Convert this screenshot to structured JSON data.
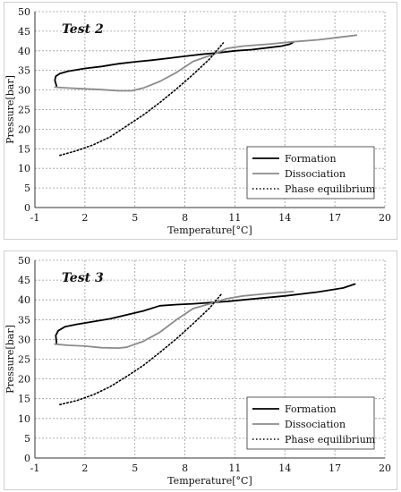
{
  "chart_data": [
    {
      "type": "line",
      "title": "Test 2",
      "xlabel": "Temperature[°C]",
      "ylabel": "Pressure[bar]",
      "xlim": [
        -1,
        20
      ],
      "ylim": [
        0,
        50
      ],
      "xticks": [
        -1,
        2,
        5,
        8,
        11,
        14,
        17,
        20
      ],
      "yticks": [
        0,
        5,
        10,
        15,
        20,
        25,
        30,
        35,
        40,
        45,
        50
      ],
      "grid": true,
      "legend": "bottom-right",
      "series": [
        {
          "name": "Formation",
          "style": "solid",
          "color": "#000000",
          "x": [
            0.3,
            0.2,
            0.25,
            0.5,
            1,
            2,
            3,
            4,
            5,
            6,
            7,
            8,
            9,
            10,
            11,
            12,
            13,
            13.8,
            14.3,
            14.5
          ],
          "y": [
            31.0,
            32.5,
            33.5,
            34.2,
            34.8,
            35.5,
            36.0,
            36.7,
            37.2,
            37.6,
            38.1,
            38.6,
            39.1,
            39.5,
            40.0,
            40.3,
            40.8,
            41.2,
            41.7,
            42.2
          ]
        },
        {
          "name": "Dissociation",
          "style": "solid",
          "color": "#8c8c8c",
          "x": [
            0.2,
            1,
            2,
            3,
            4,
            4.8,
            5.5,
            6.5,
            7.5,
            8.5,
            9.5,
            10,
            10.5,
            11.5,
            13,
            14.5,
            16,
            17,
            18.3
          ],
          "y": [
            30.7,
            30.5,
            30.3,
            30.1,
            29.8,
            29.8,
            30.5,
            32.2,
            34.5,
            37.3,
            38.8,
            39.6,
            40.6,
            41.2,
            41.7,
            42.3,
            42.8,
            43.3,
            44.0
          ]
        },
        {
          "name": "Phase equilibrium",
          "style": "dotted",
          "color": "#000000",
          "x": [
            0.5,
            1.5,
            2.5,
            3.5,
            4.5,
            5.5,
            6.5,
            7.5,
            8.5,
            9.5,
            10.3
          ],
          "y": [
            13.3,
            14.5,
            16.0,
            18.0,
            20.8,
            23.6,
            26.8,
            30.3,
            34.0,
            38.0,
            42.0
          ]
        }
      ]
    },
    {
      "type": "line",
      "title": "Test 3",
      "xlabel": "Temperature[°C]",
      "ylabel": "Pressure[bar]",
      "xlim": [
        -1,
        20
      ],
      "ylim": [
        0,
        50
      ],
      "xticks": [
        -1,
        2,
        5,
        8,
        11,
        14,
        17,
        20
      ],
      "yticks": [
        0,
        5,
        10,
        15,
        20,
        25,
        30,
        35,
        40,
        45,
        50
      ],
      "grid": true,
      "legend": "bottom-right",
      "series": [
        {
          "name": "Formation",
          "style": "solid",
          "color": "#000000",
          "x": [
            0.3,
            0.25,
            0.4,
            0.8,
            1.5,
            2.5,
            3.5,
            4.5,
            5.5,
            6.5,
            7.5,
            8.5,
            9.5,
            10.5,
            12,
            14,
            16,
            17.5,
            18.2
          ],
          "y": [
            29.0,
            31.0,
            32.2,
            33.2,
            33.8,
            34.5,
            35.2,
            36.2,
            37.2,
            38.5,
            38.8,
            39.0,
            39.3,
            39.6,
            40.2,
            41.0,
            42.0,
            43.0,
            44.0
          ]
        },
        {
          "name": "Dissociation",
          "style": "solid",
          "color": "#8c8c8c",
          "x": [
            0.2,
            1,
            2,
            3,
            4,
            4.5,
            5.5,
            6.5,
            7.5,
            8.5,
            9.5,
            10.5,
            11.5,
            13,
            14.5
          ],
          "y": [
            28.8,
            28.5,
            28.3,
            27.9,
            27.8,
            28.0,
            29.5,
            31.8,
            35.0,
            37.8,
            39.0,
            40.3,
            41.0,
            41.6,
            42.1
          ]
        },
        {
          "name": "Phase equilibrium",
          "style": "dotted",
          "color": "#000000",
          "x": [
            0.5,
            1.5,
            2.5,
            3.5,
            4.5,
            5.5,
            6.5,
            7.5,
            8.5,
            9.5,
            10.2
          ],
          "y": [
            13.5,
            14.5,
            16.0,
            18.0,
            20.6,
            23.4,
            26.7,
            30.2,
            34.0,
            38.0,
            41.5
          ]
        }
      ]
    }
  ]
}
